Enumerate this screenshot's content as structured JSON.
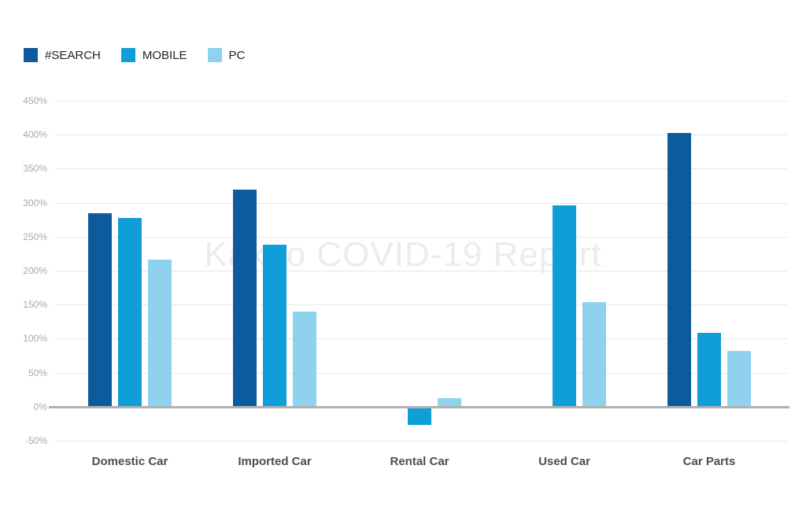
{
  "watermark": "Kakao COVID-19 Report",
  "legend": {
    "items": [
      {
        "label": "#SEARCH",
        "color": "#0d5a9c"
      },
      {
        "label": "MOBILE",
        "color": "#0f9ed8"
      },
      {
        "label": "PC",
        "color": "#8ed2f0"
      }
    ]
  },
  "chart_data": {
    "type": "bar",
    "title": "",
    "categories": [
      "Domestic Car",
      "Imported Car",
      "Rental Car",
      "Used Car",
      "Car Parts"
    ],
    "series": [
      {
        "name": "#SEARCH",
        "color": "#0d5a9c",
        "values": [
          285,
          319,
          null,
          null,
          403
        ]
      },
      {
        "name": "MOBILE",
        "color": "#0f9ed8",
        "values": [
          278,
          238,
          -27,
          296,
          109
        ]
      },
      {
        "name": "PC",
        "color": "#8ed2f0",
        "values": [
          216,
          140,
          12,
          154,
          82
        ]
      }
    ],
    "xlabel": "",
    "ylabel": "",
    "y_ticks_percent": [
      450,
      400,
      350,
      300,
      250,
      200,
      150,
      100,
      50,
      0,
      -50
    ],
    "ylim": [
      -50,
      450
    ],
    "grid": true,
    "legend_position": "top-left",
    "watermark": "Kakao COVID-19 Report"
  }
}
